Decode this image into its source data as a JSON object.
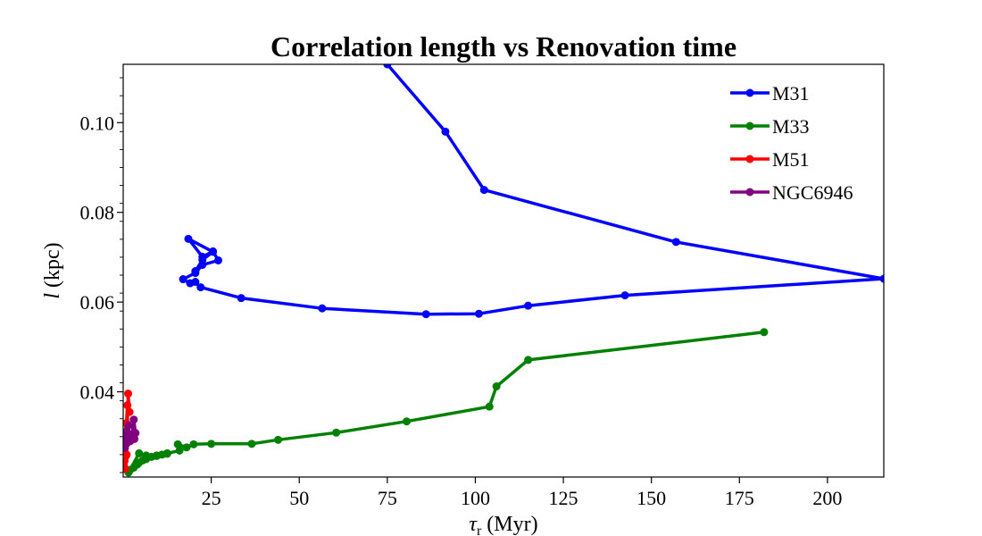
{
  "chart_data": {
    "type": "line",
    "title": "Correlation length vs Renovation time",
    "xlabel": {
      "symbol": "τ",
      "subscript": "r",
      "unit": " (Myr)"
    },
    "ylabel": {
      "symbol": "l",
      "unit": " (kpc)"
    },
    "xlim": [
      0,
      216
    ],
    "ylim": [
      0.021,
      0.113
    ],
    "xticks": [
      25,
      50,
      75,
      100,
      125,
      150,
      175,
      200
    ],
    "xtick_labels": [
      "25",
      "50",
      "75",
      "100",
      "125",
      "150",
      "175",
      "200"
    ],
    "yticks": [
      0.04,
      0.06,
      0.08,
      0.1
    ],
    "ytick_labels": [
      "0.04",
      "0.06",
      "0.08",
      "0.10"
    ],
    "grid": false,
    "legend_position": "top-right",
    "series": [
      {
        "name": "M31",
        "color": "#0000ff",
        "x": [
          75,
          91.5,
          102.5,
          157,
          216,
          142.5,
          115,
          101,
          86,
          56.5,
          33.5,
          22,
          20.5,
          19,
          17,
          20.5,
          22.5,
          27,
          25.5,
          22.5,
          18.5,
          25.5,
          22.5,
          20.5
        ],
        "y": [
          0.113,
          0.098,
          0.085,
          0.0734,
          0.0652,
          0.0615,
          0.0592,
          0.0574,
          0.0573,
          0.0586,
          0.0609,
          0.0633,
          0.0645,
          0.0642,
          0.0651,
          0.0665,
          0.0683,
          0.0693,
          0.0713,
          0.0701,
          0.0741,
          0.0712,
          0.0694,
          0.0669
        ]
      },
      {
        "name": "M33",
        "color": "#008000",
        "x": [
          182,
          115,
          106,
          104,
          80.5,
          60.5,
          44,
          36.5,
          25,
          20,
          18,
          15.5,
          16,
          12.5,
          11,
          9.5,
          8,
          6.5,
          5.5,
          4.5,
          4,
          3,
          2,
          1.5,
          4.5,
          6.5,
          9.5,
          12.5
        ],
        "y": [
          0.0533,
          0.0471,
          0.0412,
          0.0367,
          0.0334,
          0.0309,
          0.0293,
          0.0284,
          0.0284,
          0.0283,
          0.0276,
          0.0283,
          0.0269,
          0.0263,
          0.026,
          0.0258,
          0.0255,
          0.025,
          0.0247,
          0.0242,
          0.0238,
          0.0231,
          0.0226,
          0.022,
          0.0263,
          0.0258,
          0.0257,
          0.0262
        ]
      },
      {
        "name": "M51",
        "color": "#ff0000",
        "x": [
          0.3,
          0.6,
          1.0,
          1.4,
          1.8,
          1.2,
          0.9,
          0.5,
          0.8,
          0.6,
          0.4,
          0.7,
          0.4,
          0.2
        ],
        "y": [
          0.0245,
          0.0228,
          0.026,
          0.0396,
          0.0355,
          0.037,
          0.033,
          0.031,
          0.0298,
          0.0289,
          0.0276,
          0.0256,
          0.0246,
          0.0237
        ]
      },
      {
        "name": "NGC6946",
        "color": "#800080",
        "x": [
          0.5,
          1.0,
          1.5,
          2.0,
          2.5,
          3.0,
          3.5,
          3.2,
          2.6,
          2.0,
          1.5,
          1.0,
          0.5
        ],
        "y": [
          0.03,
          0.031,
          0.0325,
          0.0295,
          0.03,
          0.0338,
          0.0308,
          0.0295,
          0.0305,
          0.029,
          0.0295,
          0.0285,
          0.0275
        ]
      }
    ]
  }
}
